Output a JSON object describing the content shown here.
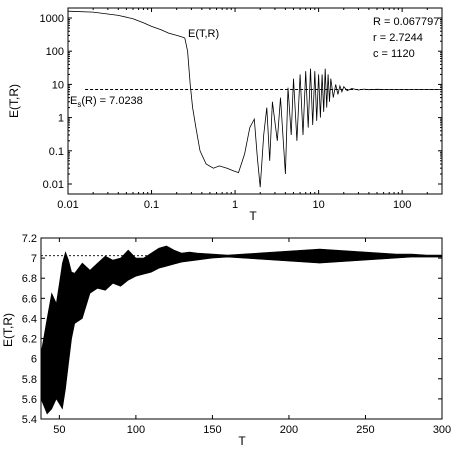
{
  "chart_data": [
    {
      "type": "line",
      "xscale": "log",
      "yscale": "log",
      "xlim": [
        0.01,
        300
      ],
      "ylim": [
        0.005,
        2000
      ],
      "xlabel": "T",
      "ylabel": "E(T,R)",
      "xticks": [
        0.01,
        0.1,
        1,
        10,
        100
      ],
      "xtick_labels": [
        "0.01",
        "0.1",
        "1",
        "10",
        "100"
      ],
      "yticks": [
        0.01,
        0.1,
        1,
        10,
        100,
        1000
      ],
      "ytick_labels": [
        "0.01",
        "0.1",
        "1",
        "10",
        "100",
        "1000"
      ],
      "grid": false,
      "series": [
        {
          "name": "E(T,R)",
          "x": [
            0.01,
            0.02,
            0.04,
            0.06,
            0.08,
            0.1,
            0.13,
            0.16,
            0.2,
            0.23,
            0.25,
            0.27,
            0.29,
            0.31,
            0.34,
            0.38,
            0.45,
            0.55,
            0.65,
            0.8,
            0.95,
            1.1,
            1.3,
            1.5,
            1.7,
            1.85,
            2.0,
            2.2,
            2.4,
            2.6,
            2.8,
            3.2,
            3.5,
            4.0,
            4.3,
            4.7,
            5.0,
            5.5,
            6.0,
            6.5,
            7.0,
            7.5,
            8.0,
            8.5,
            9.0,
            9.5,
            10.0,
            10.5,
            11.0,
            11.5,
            12.0,
            12.5,
            13.0,
            13.5,
            14.0,
            15.0,
            16.0,
            17.0,
            18.0,
            19.0,
            20.0,
            22.0,
            25.0,
            30.0,
            35.0,
            40.0,
            50.0,
            60.0,
            80.0,
            100.0,
            150.0,
            200.0,
            300.0
          ],
          "y": [
            1600,
            1500,
            1200,
            950,
            720,
            560,
            440,
            350,
            300,
            270,
            250,
            100,
            10,
            2,
            0.5,
            0.1,
            0.04,
            0.03,
            0.035,
            0.03,
            0.025,
            0.022,
            0.08,
            0.5,
            0.9,
            0.06,
            0.008,
            0.3,
            2.0,
            0.05,
            3.0,
            0.2,
            4.0,
            0.02,
            8.0,
            0.3,
            15.0,
            0.2,
            20.0,
            0.3,
            25.0,
            0.5,
            30.0,
            0.6,
            25.0,
            0.8,
            20.0,
            1.0,
            20.0,
            1.5,
            30.0,
            2.0,
            20.0,
            3.0,
            15.0,
            4.0,
            10.0,
            5.0,
            9.0,
            6.0,
            8.5,
            6.5,
            7.5,
            6.8,
            7.2,
            6.9,
            7.1,
            7.0,
            7.03,
            7.02,
            7.03,
            7.02,
            7.02
          ]
        },
        {
          "name": "E_s(R) = 7.0238",
          "style": "dashed",
          "x": [
            0.016,
            300
          ],
          "y": [
            7.0238,
            7.0238
          ]
        }
      ],
      "annotations": {
        "curve_label": "E(T,R)",
        "asymptote_label_main": "E",
        "asymptote_label_sub": "s",
        "asymptote_label_rest": "(R) = 7.0238",
        "params": [
          "R = 0.067797",
          "r = 2.7244",
          "c = 1120"
        ]
      }
    },
    {
      "type": "line",
      "xscale": "linear",
      "yscale": "linear",
      "xlim": [
        38,
        300
      ],
      "ylim": [
        5.4,
        7.2
      ],
      "xlabel": "T",
      "ylabel": "E(T,R)",
      "xticks": [
        50,
        100,
        150,
        200,
        250,
        300
      ],
      "xtick_labels": [
        "50",
        "100",
        "150",
        "200",
        "250",
        "300"
      ],
      "yticks": [
        5.4,
        5.6,
        5.8,
        6.0,
        6.2,
        6.4,
        6.6,
        6.8,
        7.0,
        7.2
      ],
      "ytick_labels": [
        "5.4",
        "5.6",
        "5.8",
        "6",
        "6.2",
        "6.4",
        "6.6",
        "6.8",
        "7",
        "7.2"
      ],
      "grid": false,
      "reference_line": 7.0238,
      "envelope": {
        "x": [
          38,
          42,
          45,
          48,
          50,
          52,
          54,
          56,
          58,
          60,
          65,
          70,
          75,
          80,
          85,
          90,
          95,
          100,
          105,
          110,
          115,
          120,
          125,
          130,
          135,
          140,
          150,
          160,
          170,
          180,
          190,
          200,
          210,
          220,
          230,
          240,
          250,
          260,
          270,
          280,
          290,
          300
        ],
        "upper": [
          6.05,
          6.4,
          6.65,
          6.55,
          6.75,
          6.95,
          7.06,
          6.98,
          6.86,
          6.85,
          6.95,
          6.88,
          6.95,
          7.02,
          6.98,
          7.0,
          7.08,
          7.0,
          7.0,
          7.05,
          7.1,
          7.12,
          7.08,
          7.05,
          7.06,
          7.05,
          7.04,
          7.03,
          7.04,
          7.05,
          7.06,
          7.07,
          7.08,
          7.09,
          7.08,
          7.07,
          7.06,
          7.05,
          7.04,
          7.04,
          7.03,
          7.03
        ],
        "lower": [
          5.6,
          5.45,
          5.5,
          5.6,
          5.55,
          5.5,
          5.7,
          5.95,
          6.2,
          6.35,
          6.4,
          6.65,
          6.7,
          6.68,
          6.75,
          6.72,
          6.78,
          6.82,
          6.84,
          6.86,
          6.9,
          6.92,
          6.94,
          6.96,
          6.97,
          6.98,
          7.0,
          7.01,
          7.0,
          6.99,
          6.98,
          6.97,
          6.96,
          6.95,
          6.96,
          6.97,
          6.98,
          6.99,
          7.0,
          7.01,
          7.01,
          7.01
        ]
      }
    }
  ]
}
